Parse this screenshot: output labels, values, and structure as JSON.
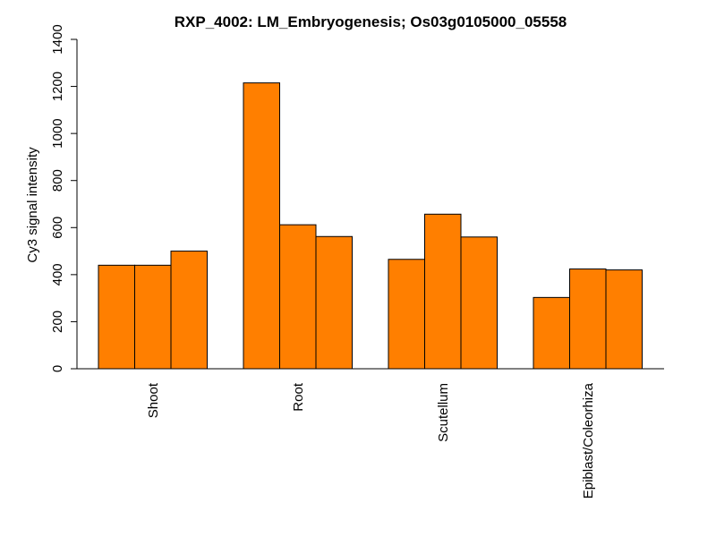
{
  "chart_data": {
    "type": "bar",
    "title": "RXP_4002: LM_Embryogenesis; Os03g0105000_05558",
    "xlabel": "",
    "ylabel": "Cy3 signal intensity",
    "ylim": [
      0,
      1400
    ],
    "yticks": [
      "0",
      "200",
      "400",
      "600",
      "800",
      "1000",
      "1200",
      "1400"
    ],
    "categories": [
      "Shoot",
      "Root",
      "Scutellum",
      "Epiblast/Coleorhiza"
    ],
    "bars_per_group": 3,
    "values": [
      [
        440,
        440,
        500
      ],
      [
        1215,
        612,
        562
      ],
      [
        465,
        657,
        560
      ],
      [
        303,
        424,
        420
      ]
    ],
    "bar_color": "#ff7f00",
    "grid": false,
    "legend": "none"
  }
}
